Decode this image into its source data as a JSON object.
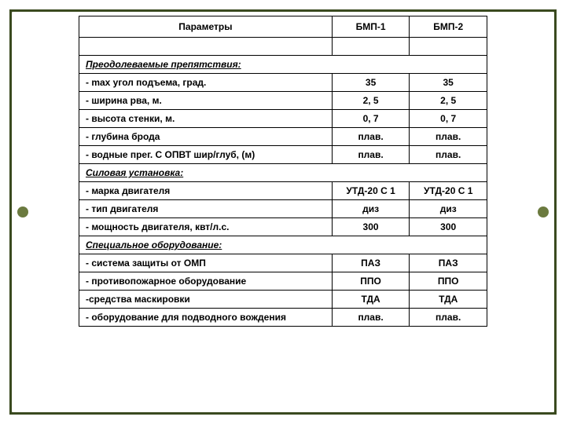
{
  "headers": {
    "param": "Параметры",
    "col1": "БМП-1",
    "col2": "БМП-2"
  },
  "sections": {
    "obstacles": "Преодолеваемые препятствия:",
    "power": "Силовая установка:",
    "special": "Специальное оборудование:"
  },
  "rows": {
    "r1": {
      "p": "- max угол подъема, град.",
      "v1": "35",
      "v2": "35"
    },
    "r2": {
      "p": "- ширина рва, м.",
      "v1": "2, 5",
      "v2": "2, 5"
    },
    "r3": {
      "p": "- высота стенки, м.",
      "v1": "0, 7",
      "v2": "0, 7"
    },
    "r4": {
      "p": "- глубина брода",
      "v1": "плав.",
      "v2": "плав."
    },
    "r5": {
      "p": "- водные прег. С ОПВТ шир/глуб, (м)",
      "v1": "плав.",
      "v2": "плав."
    },
    "r6": {
      "p": "- марка двигателя",
      "v1": "УТД-20 С 1",
      "v2": "УТД-20 С 1"
    },
    "r7": {
      "p": "- тип двигателя",
      "v1": "диз",
      "v2": "диз"
    },
    "r8": {
      "p": "- мощность двигателя, квт/л.с.",
      "v1": "300",
      "v2": "300"
    },
    "r9": {
      "p": "- система защиты от ОМП",
      "v1": "ПАЗ",
      "v2": "ПАЗ"
    },
    "r10": {
      "p": "- противопожарное оборудование",
      "v1": "ППО",
      "v2": "ППО"
    },
    "r11": {
      "p": "-средства маскировки",
      "v1": "ТДА",
      "v2": "ТДА"
    },
    "r12": {
      "p": " - оборудование для подводного вождения",
      "v1": "плав.",
      "v2": "плав."
    }
  },
  "style": {
    "frame_color": "#3a4a1f",
    "dot_color": "#6b7a3f",
    "border_color": "#000000",
    "bg": "#ffffff",
    "font": "Arial",
    "header_fontsize": 12,
    "cell_fontsize": 12
  }
}
